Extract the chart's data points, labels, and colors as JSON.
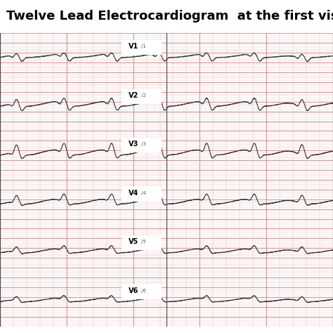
{
  "title": "Twelve Lead Electrocardiogram  at the first visit.",
  "title_fontsize": 13,
  "title_fontweight": "bold",
  "background_color": "#e8e8e8",
  "grid_major_color": "#cc8888",
  "grid_minor_color": "#e8bbbb",
  "ecg_color": "#333333",
  "ecg_linewidth": 0.8,
  "leads_left": [
    "V1",
    "V2",
    "V3",
    "V4",
    "V5",
    "V6"
  ],
  "lead_labels_right": [
    "/1",
    "/2",
    "/3",
    "/4",
    "/5",
    "/6"
  ],
  "fig_width": 4.74,
  "fig_height": 4.74,
  "dpi": 100
}
